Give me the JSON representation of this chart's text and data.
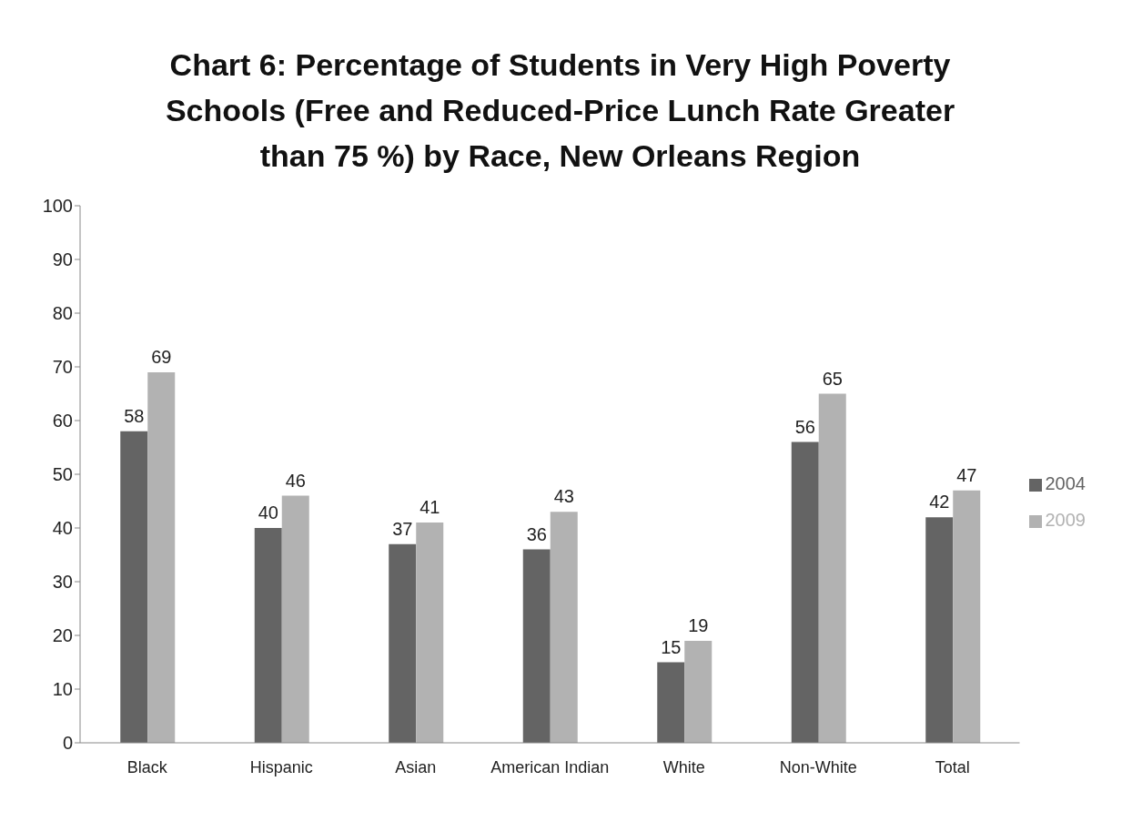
{
  "chart_data": {
    "type": "bar",
    "title": "Chart 6: Percentage of Students in Very High Poverty Schools (Free and Reduced-Price Lunch Rate Greater than 75 %) by Race, New Orleans Region",
    "categories": [
      "Black",
      "Hispanic",
      "Asian",
      "American Indian",
      "White",
      "Non-White",
      "Total"
    ],
    "series": [
      {
        "name": "2004",
        "color": "#646464",
        "values": [
          58,
          40,
          37,
          36,
          15,
          56,
          42
        ]
      },
      {
        "name": "2009",
        "color": "#b2b2b2",
        "values": [
          69,
          46,
          41,
          43,
          19,
          65,
          47
        ]
      }
    ],
    "ylim": [
      0,
      100
    ],
    "yticks": [
      0,
      10,
      20,
      30,
      40,
      50,
      60,
      70,
      80,
      90,
      100
    ],
    "grid": false,
    "legend": "right",
    "data_labels": true
  }
}
